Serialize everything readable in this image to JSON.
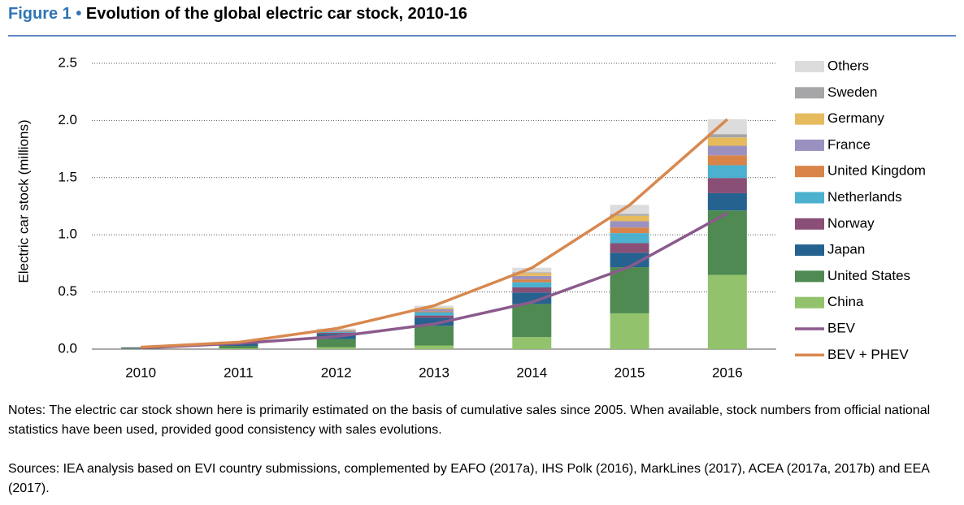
{
  "chart_data": {
    "type": "bar",
    "figure_label": "Figure 1 •",
    "title": "Evolution of the global electric car stock, 2010-16",
    "y_label": "Electric car stock (millions)",
    "categories": [
      "2010",
      "2011",
      "2012",
      "2013",
      "2014",
      "2015",
      "2016"
    ],
    "ylim": [
      0,
      2.5
    ],
    "yticks": [
      {
        "value": 0,
        "label": "0.0"
      },
      0.5,
      {
        "value": 1,
        "label": "1.0"
      },
      1.5,
      {
        "value": 2,
        "label": "2.0"
      },
      2.5
    ],
    "grid": true,
    "series": [
      {
        "name": "China",
        "color": "#92c36c",
        "values": [
          0.002,
          0.007,
          0.016,
          0.032,
          0.105,
          0.313,
          0.649
        ]
      },
      {
        "name": "United States",
        "color": "#4e8a51",
        "values": [
          0.004,
          0.021,
          0.072,
          0.172,
          0.29,
          0.404,
          0.564
        ]
      },
      {
        "name": "Japan",
        "color": "#26628f",
        "values": [
          0.006,
          0.022,
          0.044,
          0.07,
          0.1,
          0.126,
          0.151
        ]
      },
      {
        "name": "Norway",
        "color": "#8a4f76",
        "values": [
          0.003,
          0.005,
          0.01,
          0.02,
          0.045,
          0.084,
          0.133
        ]
      },
      {
        "name": "Netherlands",
        "color": "#4bb1cf",
        "values": [
          0.0003,
          0.001,
          0.007,
          0.029,
          0.045,
          0.088,
          0.112
        ]
      },
      {
        "name": "United Kingdom",
        "color": "#d88449",
        "values": [
          0.0012,
          0.002,
          0.004,
          0.008,
          0.025,
          0.049,
          0.086
        ]
      },
      {
        "name": "France",
        "color": "#9b91c0",
        "values": [
          0.0003,
          0.003,
          0.01,
          0.017,
          0.03,
          0.055,
          0.084
        ]
      },
      {
        "name": "Germany",
        "color": "#e6bb5e",
        "values": [
          0.0003,
          0.002,
          0.006,
          0.012,
          0.025,
          0.048,
          0.073
        ]
      },
      {
        "name": "Sweden",
        "color": "#a6a6a8",
        "values": [
          0.0004,
          0.0005,
          0.001,
          0.003,
          0.007,
          0.015,
          0.029
        ]
      },
      {
        "name": "Others",
        "color": "#dcdcdc",
        "values": [
          0.001,
          0.004,
          0.01,
          0.017,
          0.04,
          0.08,
          0.13
        ]
      }
    ],
    "line_series": [
      {
        "name": "BEV",
        "color": "#8b5a8c",
        "values": [
          0.01,
          0.05,
          0.11,
          0.22,
          0.41,
          0.72,
          1.19
        ]
      },
      {
        "name": "BEV + PHEV",
        "color": "#d8884f",
        "values": [
          0.017,
          0.06,
          0.18,
          0.38,
          0.71,
          1.26,
          2.01
        ]
      }
    ]
  },
  "notes": "Notes: The electric car stock shown here is primarily estimated on the basis of cumulative sales since 2005. When available, stock numbers from official national statistics have been used, provided good consistency with sales evolutions.",
  "sources": "Sources: IEA analysis based on EVI country submissions, complemented by EAFO (2017a), IHS Polk (2016), MarkLines (2017), ACEA (2017a, 2017b)  and EEA (2017)."
}
